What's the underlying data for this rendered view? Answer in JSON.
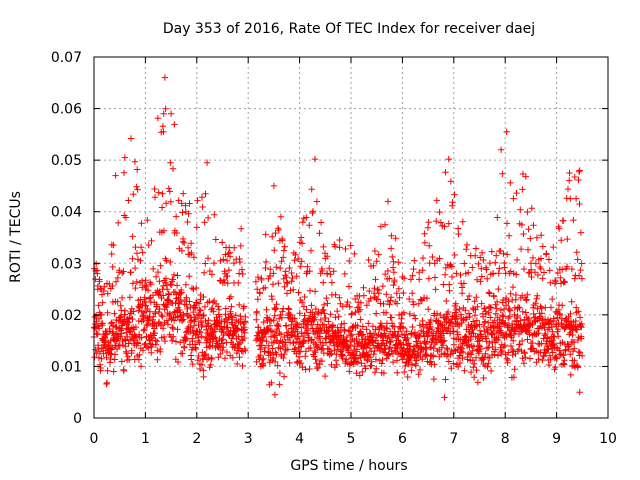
{
  "chart_data": {
    "type": "scatter",
    "title": "Day 353 of 2016, Rate Of TEC Index for receiver daej",
    "xlabel": "GPS time / hours",
    "ylabel": "ROTI / TECUs",
    "xlim": [
      0,
      10
    ],
    "ylim": [
      0,
      0.07
    ],
    "xticks": [
      0,
      1,
      2,
      3,
      4,
      5,
      6,
      7,
      8,
      9,
      10
    ],
    "xtick_labels": [
      "0",
      "1",
      "2",
      "3",
      "4",
      "5",
      "6",
      "7",
      "8",
      "9",
      "10"
    ],
    "yticks": [
      0,
      0.01,
      0.02,
      0.03,
      0.04,
      0.05,
      0.06,
      0.07
    ],
    "ytick_labels": [
      "0",
      "0.01",
      "0.02",
      "0.03",
      "0.04",
      "0.05",
      "0.06",
      "0.07"
    ],
    "grid": true,
    "marker": "+",
    "color": "#ff0000",
    "series_name": "ROTI",
    "data_gap_hours": [
      2.95,
      3.15
    ],
    "envelope": [
      {
        "t": 0.0,
        "base_min": 0.007,
        "base_max": 0.025,
        "spike_max": 0.03
      },
      {
        "t": 0.3,
        "base_min": 0.006,
        "base_max": 0.024,
        "spike_max": 0.032
      },
      {
        "t": 0.5,
        "base_min": 0.007,
        "base_max": 0.026,
        "spike_max": 0.048
      },
      {
        "t": 0.75,
        "base_min": 0.007,
        "base_max": 0.028,
        "spike_max": 0.054
      },
      {
        "t": 1.0,
        "base_min": 0.007,
        "base_max": 0.032,
        "spike_max": 0.046
      },
      {
        "t": 1.35,
        "base_min": 0.007,
        "base_max": 0.036,
        "spike_max": 0.066
      },
      {
        "t": 1.6,
        "base_min": 0.008,
        "base_max": 0.034,
        "spike_max": 0.059
      },
      {
        "t": 1.8,
        "base_min": 0.006,
        "base_max": 0.03,
        "spike_max": 0.04
      },
      {
        "t": 2.0,
        "base_min": 0.006,
        "base_max": 0.03,
        "spike_max": 0.047
      },
      {
        "t": 2.2,
        "base_min": 0.006,
        "base_max": 0.028,
        "spike_max": 0.05
      },
      {
        "t": 2.5,
        "base_min": 0.007,
        "base_max": 0.026,
        "spike_max": 0.034
      },
      {
        "t": 2.9,
        "base_min": 0.007,
        "base_max": 0.026,
        "spike_max": 0.037
      },
      {
        "t": 3.2,
        "base_min": 0.007,
        "base_max": 0.024,
        "spike_max": 0.03
      },
      {
        "t": 3.5,
        "base_min": 0.004,
        "base_max": 0.026,
        "spike_max": 0.045
      },
      {
        "t": 3.8,
        "base_min": 0.007,
        "base_max": 0.026,
        "spike_max": 0.032
      },
      {
        "t": 4.0,
        "base_min": 0.007,
        "base_max": 0.028,
        "spike_max": 0.036
      },
      {
        "t": 4.3,
        "base_min": 0.006,
        "base_max": 0.028,
        "spike_max": 0.05
      },
      {
        "t": 4.6,
        "base_min": 0.007,
        "base_max": 0.024,
        "spike_max": 0.037
      },
      {
        "t": 5.0,
        "base_min": 0.007,
        "base_max": 0.02,
        "spike_max": 0.036
      },
      {
        "t": 5.4,
        "base_min": 0.007,
        "base_max": 0.022,
        "spike_max": 0.03
      },
      {
        "t": 5.7,
        "base_min": 0.007,
        "base_max": 0.022,
        "spike_max": 0.042
      },
      {
        "t": 6.0,
        "base_min": 0.007,
        "base_max": 0.022,
        "spike_max": 0.03
      },
      {
        "t": 6.3,
        "base_min": 0.007,
        "base_max": 0.022,
        "spike_max": 0.034
      },
      {
        "t": 6.6,
        "base_min": 0.006,
        "base_max": 0.024,
        "spike_max": 0.04
      },
      {
        "t": 6.85,
        "base_min": 0.004,
        "base_max": 0.028,
        "spike_max": 0.05
      },
      {
        "t": 7.1,
        "base_min": 0.005,
        "base_max": 0.026,
        "spike_max": 0.04
      },
      {
        "t": 7.5,
        "base_min": 0.006,
        "base_max": 0.026,
        "spike_max": 0.032
      },
      {
        "t": 7.8,
        "base_min": 0.006,
        "base_max": 0.028,
        "spike_max": 0.034
      },
      {
        "t": 8.0,
        "base_min": 0.006,
        "base_max": 0.028,
        "spike_max": 0.055
      },
      {
        "t": 8.4,
        "base_min": 0.007,
        "base_max": 0.028,
        "spike_max": 0.047
      },
      {
        "t": 8.7,
        "base_min": 0.007,
        "base_max": 0.026,
        "spike_max": 0.038
      },
      {
        "t": 9.0,
        "base_min": 0.006,
        "base_max": 0.026,
        "spike_max": 0.036
      },
      {
        "t": 9.2,
        "base_min": 0.006,
        "base_max": 0.026,
        "spike_max": 0.047
      },
      {
        "t": 9.5,
        "base_min": 0.005,
        "base_max": 0.028,
        "spike_max": 0.048
      }
    ],
    "notable_points": [
      {
        "x": 1.38,
        "y": 0.066
      },
      {
        "x": 1.5,
        "y": 0.059
      },
      {
        "x": 1.35,
        "y": 0.0555
      },
      {
        "x": 0.72,
        "y": 0.0542
      },
      {
        "x": 8.03,
        "y": 0.0555
      },
      {
        "x": 7.92,
        "y": 0.052
      },
      {
        "x": 0.6,
        "y": 0.0505
      },
      {
        "x": 4.3,
        "y": 0.0502
      },
      {
        "x": 6.9,
        "y": 0.0502
      },
      {
        "x": 2.2,
        "y": 0.0495
      },
      {
        "x": 9.45,
        "y": 0.048
      },
      {
        "x": 9.25,
        "y": 0.0475
      },
      {
        "x": 0.42,
        "y": 0.047
      },
      {
        "x": 8.4,
        "y": 0.0468
      },
      {
        "x": 3.5,
        "y": 0.045
      },
      {
        "x": 5.72,
        "y": 0.042
      },
      {
        "x": 6.82,
        "y": 0.004
      },
      {
        "x": 3.52,
        "y": 0.0045
      },
      {
        "x": 9.45,
        "y": 0.005
      }
    ]
  }
}
